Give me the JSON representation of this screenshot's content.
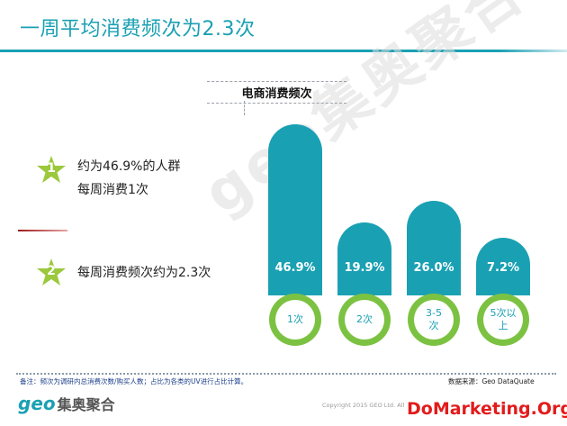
{
  "header": {
    "title": "一周平均消费频次为2.3次"
  },
  "watermark": {
    "text": "geo集奥聚合"
  },
  "points": [
    {
      "num": "1",
      "lines": [
        "约为46.9%的人群",
        "每周消费1次"
      ]
    },
    {
      "num": "2",
      "lines": [
        "每周消费频次约为2.3次"
      ]
    }
  ],
  "colors": {
    "accent": "#1aa0b3",
    "green": "#7cc242",
    "note": "#1a3d8a",
    "brand_red": "#e21b1b"
  },
  "chart_data": {
    "type": "bar",
    "title": "电商消费频次",
    "categories": [
      "1次",
      "2次",
      "3-5次",
      "5次以上"
    ],
    "values": [
      46.9,
      19.9,
      26.0,
      7.2
    ],
    "value_labels": [
      "46.9%",
      "19.9%",
      "26.0%",
      "7.2%"
    ],
    "unit": "%"
  },
  "footer": {
    "note": "备注：频次为调研内总消费次数/购买人数；占比为各类的UV进行占比计算。",
    "source": "数据来源：Geo DataQuate",
    "logo_geo": "geo",
    "logo_cn": "集奥聚合",
    "copyright": "Copyright 2015 GEO Ltd. All",
    "site": "DoMarketing.Org"
  }
}
